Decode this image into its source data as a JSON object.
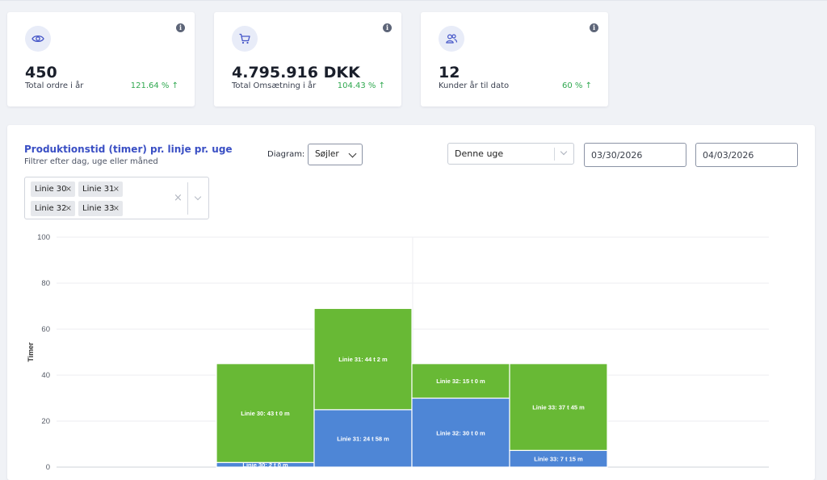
{
  "kpis": [
    {
      "value": "450",
      "label": "Total ordre i år",
      "change": "121.64 % ↑",
      "icon": "eye-icon"
    },
    {
      "value": "4.795.916 DKK",
      "label": "Total Omsætning i år",
      "change": "104.43 % ↑",
      "icon": "cart-icon"
    },
    {
      "value": "12",
      "label": "Kunder år til dato",
      "change": "60 % ↑",
      "icon": "users-icon"
    }
  ],
  "info_glyph": "i",
  "panel": {
    "title": "Produktionstid (timer) pr. linje pr. uge",
    "subtitle": "Filtrer efter dag, uge eller måned",
    "diagram_label": "Diagram:",
    "diagram_value": "Søjler",
    "period_value": "Denne uge",
    "date_from": "03/30/2026",
    "date_to": "04/03/2026",
    "line_tags": [
      "Linie 30",
      "Linie 31",
      "Linie 32",
      "Linie 33"
    ],
    "tag_remove": "×",
    "clear_all": "×"
  },
  "colors": {
    "accent": "#3a4fc4",
    "positive": "#2fa84f",
    "bar_green": "#68b935",
    "bar_blue": "#4e86d6"
  },
  "chart_data": {
    "type": "bar",
    "stacked": true,
    "ylabel": "Timer",
    "ylim": [
      0,
      100
    ],
    "yticks": [
      0,
      20,
      40,
      60,
      80,
      100
    ],
    "grid": true,
    "bars": [
      {
        "segments": [
          {
            "value": 2,
            "label": "Linie 30: 2 t 0 m",
            "color": "blue"
          },
          {
            "value": 43,
            "label": "Linie 30: 43 t 0 m",
            "color": "green"
          }
        ]
      },
      {
        "segments": [
          {
            "value": 24.97,
            "label": "Linie 31: 24 t 58 m",
            "color": "blue"
          },
          {
            "value": 44.03,
            "label": "Linie 31: 44 t 2 m",
            "color": "green"
          }
        ]
      },
      {
        "segments": [
          {
            "value": 30,
            "label": "Linie 32: 30 t 0 m",
            "color": "blue"
          },
          {
            "value": 15,
            "label": "Linie 32: 15 t 0 m",
            "color": "green"
          }
        ]
      },
      {
        "segments": [
          {
            "value": 7.25,
            "label": "Linie 33: 7 t 15 m",
            "color": "blue"
          },
          {
            "value": 37.75,
            "label": "Linie 33: 37 t 45 m",
            "color": "green"
          }
        ]
      }
    ]
  }
}
